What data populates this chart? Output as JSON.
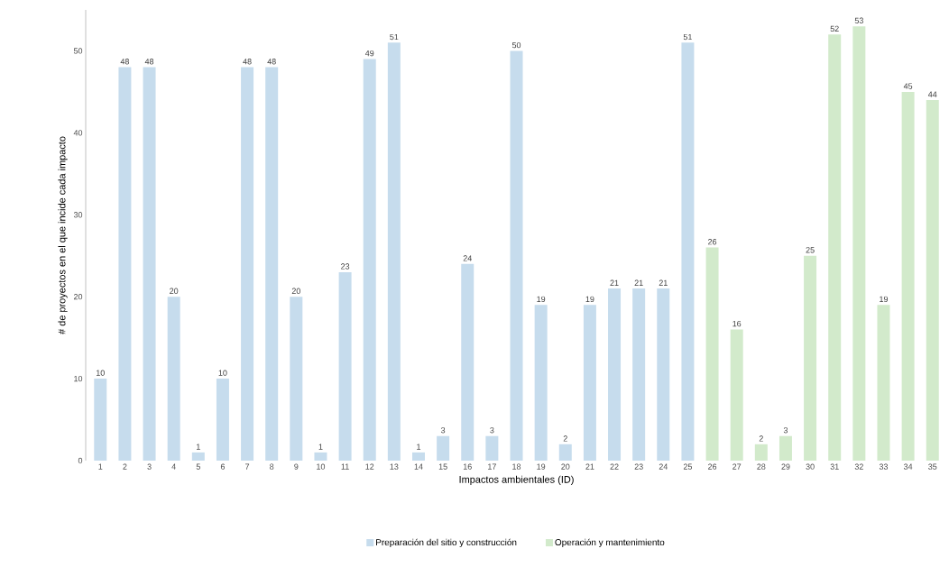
{
  "chart_data": {
    "type": "bar",
    "xlabel": "Impactos ambientales (ID)",
    "ylabel": "# de proyectos en el que incide cada impacto",
    "categories": [
      "1",
      "2",
      "3",
      "4",
      "5",
      "6",
      "7",
      "8",
      "9",
      "10",
      "11",
      "12",
      "13",
      "14",
      "15",
      "16",
      "17",
      "18",
      "19",
      "20",
      "21",
      "22",
      "23",
      "24",
      "25",
      "26",
      "27",
      "28",
      "29",
      "30",
      "31",
      "32",
      "33",
      "34",
      "35"
    ],
    "series": [
      {
        "name": "Preparación del sitio y construcción",
        "color": "#c6dced",
        "values": [
          10,
          48,
          48,
          20,
          1,
          10,
          48,
          48,
          20,
          1,
          23,
          49,
          51,
          1,
          3,
          24,
          3,
          50,
          19,
          2,
          19,
          21,
          21,
          21,
          51,
          null,
          null,
          null,
          null,
          null,
          null,
          null,
          null,
          null,
          null
        ]
      },
      {
        "name": "Operación y mantenimiento",
        "color": "#d2eacb",
        "values": [
          null,
          null,
          null,
          null,
          null,
          null,
          null,
          null,
          null,
          null,
          null,
          null,
          null,
          null,
          null,
          null,
          null,
          null,
          null,
          null,
          null,
          null,
          null,
          null,
          null,
          26,
          16,
          2,
          3,
          25,
          52,
          53,
          19,
          45,
          44
        ]
      }
    ],
    "ylim": [
      0,
      55
    ],
    "yticks": [
      0,
      10,
      20,
      30,
      40,
      50
    ],
    "data_labels": true,
    "grid": false,
    "legend": "bottom"
  }
}
